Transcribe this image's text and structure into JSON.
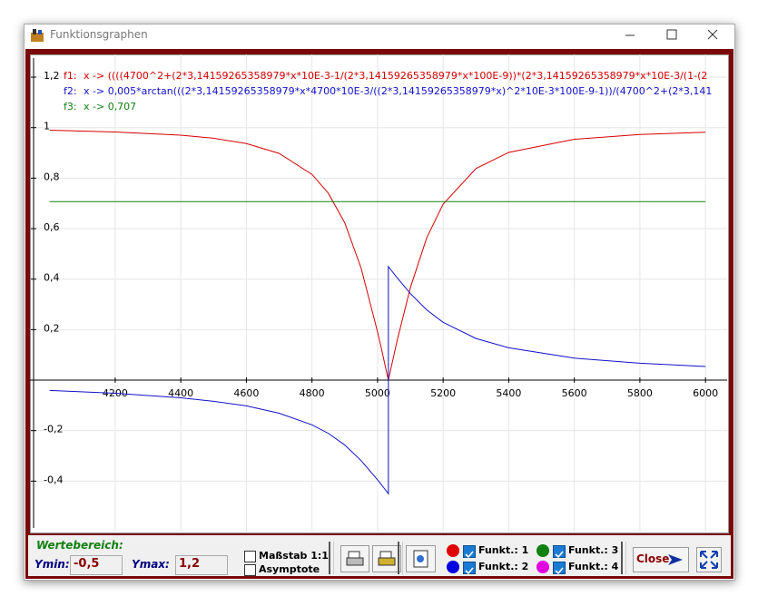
{
  "window": {
    "title": "Funktionsgraphen"
  },
  "chart_data": {
    "type": "line",
    "xlim": [
      3940,
      6066
    ],
    "ylim": [
      -0.6,
      1.29
    ],
    "xticks": [
      4200,
      4400,
      4600,
      4800,
      5000,
      5200,
      5400,
      5600,
      5800,
      6000
    ],
    "yticks": [
      {
        "value": 1.2,
        "label": "1,2"
      },
      1,
      {
        "value": 0.8,
        "label": "0,8"
      },
      {
        "value": 0.6,
        "label": "0,6"
      },
      {
        "value": 0.4,
        "label": "0,4"
      },
      {
        "value": 0.2,
        "label": "0,2"
      },
      {
        "value": -0.2,
        "label": "-0,2"
      },
      {
        "value": -0.4,
        "label": "-0,4"
      }
    ],
    "grid": true,
    "series": [
      {
        "name": "f1:",
        "expression": "x -> ((((4700^2+(2*3,14159265358979*x*10E-3-1/(2*3,14159265358979*x*100E-9))*(2*3,14159265358979*x*10E-3/(1-(2",
        "color": "#d40000",
        "x": [
          4000,
          4200,
          4400,
          4500,
          4600,
          4700,
          4800,
          4850,
          4900,
          4950,
          5000,
          5010,
          5020,
          5030,
          5033,
          5033,
          5040,
          5060,
          5100,
          5150,
          5200,
          5300,
          5400,
          5600,
          5800,
          6000
        ],
        "values": [
          0.99,
          0.983,
          0.97,
          0.958,
          0.937,
          0.898,
          0.815,
          0.74,
          0.623,
          0.443,
          0.191,
          0.135,
          0.076,
          0.017,
          0,
          0,
          0.042,
          0.158,
          0.366,
          0.564,
          0.697,
          0.838,
          0.902,
          0.954,
          0.973,
          0.982
        ]
      },
      {
        "name": "f2:",
        "expression": "x -> 0,005*arctan(((2*3,14159265358979*x*4700*10E-3/((2*3,14159265358979*x)^2*10E-3*100E-9-1))/(4700^2+(2*3,141",
        "color": "#1010c8",
        "x": [
          4000,
          4200,
          4400,
          4500,
          4600,
          4700,
          4800,
          4850,
          4900,
          4950,
          5000,
          5010,
          5020,
          5030,
          5033,
          5033,
          5040,
          5060,
          5100,
          5150,
          5200,
          5300,
          5400,
          5600,
          5800,
          6000
        ],
        "values": [
          -0.041,
          -0.052,
          -0.07,
          -0.084,
          -0.102,
          -0.131,
          -0.177,
          -0.211,
          -0.257,
          -0.319,
          -0.395,
          -0.411,
          -0.428,
          -0.445,
          -0.45,
          0.45,
          0.438,
          0.405,
          0.343,
          0.278,
          0.229,
          0.165,
          0.128,
          0.087,
          0.067,
          0.054
        ]
      },
      {
        "name": "f3:",
        "expression": "x -> 0,707",
        "color": "#108010",
        "x": [
          4000,
          6000
        ],
        "values": [
          0.707,
          0.707
        ]
      }
    ]
  },
  "controls": {
    "range_title": "Wertebereich:",
    "ymin_label": "Ymin:",
    "ymin": "-0,5",
    "ymax_label": "Ymax:",
    "ymax": "1,2",
    "checkboxes": [
      "Maßstab 1:1",
      "Asymptote"
    ],
    "functions": [
      {
        "label": "Funkt.: 1",
        "color": "#e00000"
      },
      {
        "label": "Funkt.: 2",
        "color": "#0000e0"
      },
      {
        "label": "Funkt.: 3",
        "color": "#108010"
      },
      {
        "label": "Funkt.: 4",
        "color": "#e000e0"
      }
    ],
    "close": "Close"
  }
}
